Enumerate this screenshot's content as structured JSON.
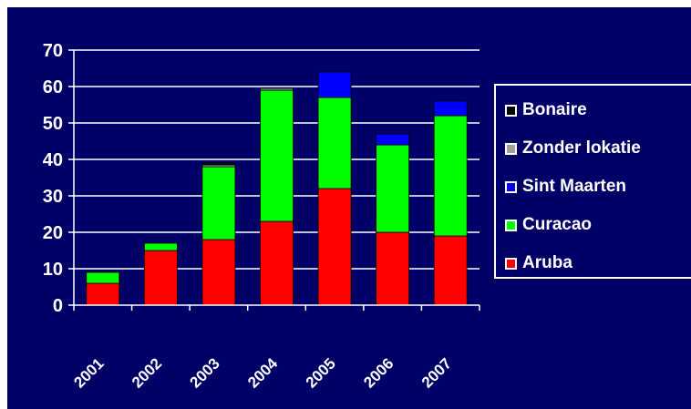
{
  "chart_data": {
    "type": "bar",
    "stacked": true,
    "categories": [
      "2001",
      "2002",
      "2003",
      "2004",
      "2005",
      "2006",
      "2007"
    ],
    "series": [
      {
        "name": "Aruba",
        "color": "#ff0000",
        "values": [
          6,
          15,
          18,
          23,
          32,
          20,
          19
        ]
      },
      {
        "name": "Curacao",
        "color": "#00ff00",
        "values": [
          3,
          2,
          20,
          36,
          25,
          24,
          33
        ]
      },
      {
        "name": "Sint Maarten",
        "color": "#0000ff",
        "values": [
          0,
          0,
          0,
          0,
          7,
          3,
          4
        ]
      },
      {
        "name": "Zonder lokatie",
        "color": "#a0a0a0",
        "values": [
          0,
          0,
          0.5,
          0.5,
          0,
          0,
          0
        ]
      },
      {
        "name": "Bonaire",
        "color": "#000000",
        "values": [
          0,
          0,
          0.5,
          0,
          0,
          0,
          0
        ]
      }
    ],
    "yticks": [
      "0",
      "10",
      "20",
      "30",
      "40",
      "50",
      "60",
      "70"
    ],
    "ylim": [
      0,
      70
    ],
    "grid": true,
    "legend_position": "right",
    "background": "#000066"
  }
}
